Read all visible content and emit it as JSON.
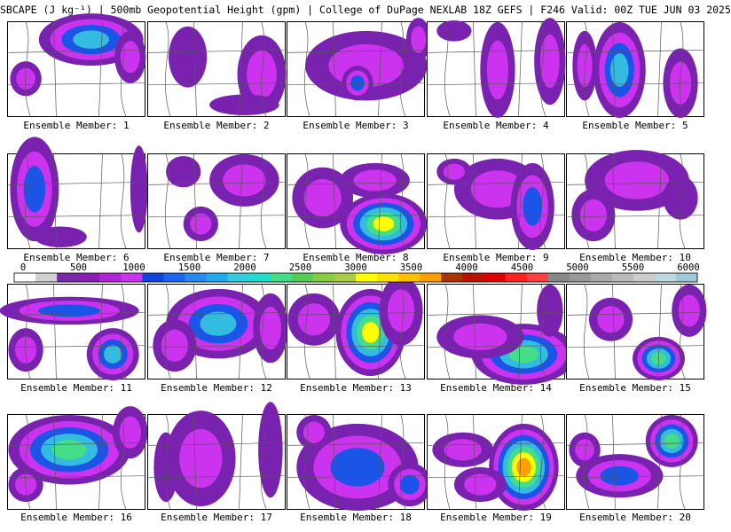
{
  "title": "SBCAPE (J kg⁻¹) | 500mb Geopotential Height (gpm) | College of DuPage NEXLAB 18Z GEFS | F246 Valid: 00Z TUE JUN 03 2025",
  "colorbar": {
    "tick_labels": [
      "0",
      "500",
      "1000",
      "1500",
      "2000",
      "2500",
      "3000",
      "3500",
      "4000",
      "4500",
      "5000",
      "5500",
      "6000"
    ],
    "colors": [
      "#ffffff",
      "#d0d0d0",
      "#7a2aa8",
      "#8a1fb8",
      "#b222d8",
      "#cc33ee",
      "#1144dd",
      "#1c66ee",
      "#2a88f2",
      "#22aaee",
      "#33ccdd",
      "#22ddcc",
      "#44dd88",
      "#55cc55",
      "#88cc44",
      "#aacc44",
      "#ffff00",
      "#ffe000",
      "#ffc000",
      "#ffa000",
      "#aa3300",
      "#bb1100",
      "#dd0000",
      "#ff2020",
      "#ff4040",
      "#888888",
      "#999999",
      "#aaaaaa",
      "#bbbbbb",
      "#cccccc",
      "#c0d8e0",
      "#a0c8d8"
    ]
  },
  "members": [
    {
      "label": "Ensemble Member: 1"
    },
    {
      "label": "Ensemble Member: 2"
    },
    {
      "label": "Ensemble Member: 3"
    },
    {
      "label": "Ensemble Member: 4"
    },
    {
      "label": "Ensemble Member: 5"
    },
    {
      "label": "Ensemble Member: 6"
    },
    {
      "label": "Ensemble Member: 7"
    },
    {
      "label": "Ensemble Member: 8"
    },
    {
      "label": "Ensemble Member: 9"
    },
    {
      "label": "Ensemble Member: 10"
    },
    {
      "label": "Ensemble Member: 11"
    },
    {
      "label": "Ensemble Member: 12"
    },
    {
      "label": "Ensemble Member: 13"
    },
    {
      "label": "Ensemble Member: 14"
    },
    {
      "label": "Ensemble Member: 15"
    },
    {
      "label": "Ensemble Member: 16"
    },
    {
      "label": "Ensemble Member: 17"
    },
    {
      "label": "Ensemble Member: 18"
    },
    {
      "label": "Ensemble Member: 19"
    },
    {
      "label": "Ensemble Member: 20"
    }
  ]
}
